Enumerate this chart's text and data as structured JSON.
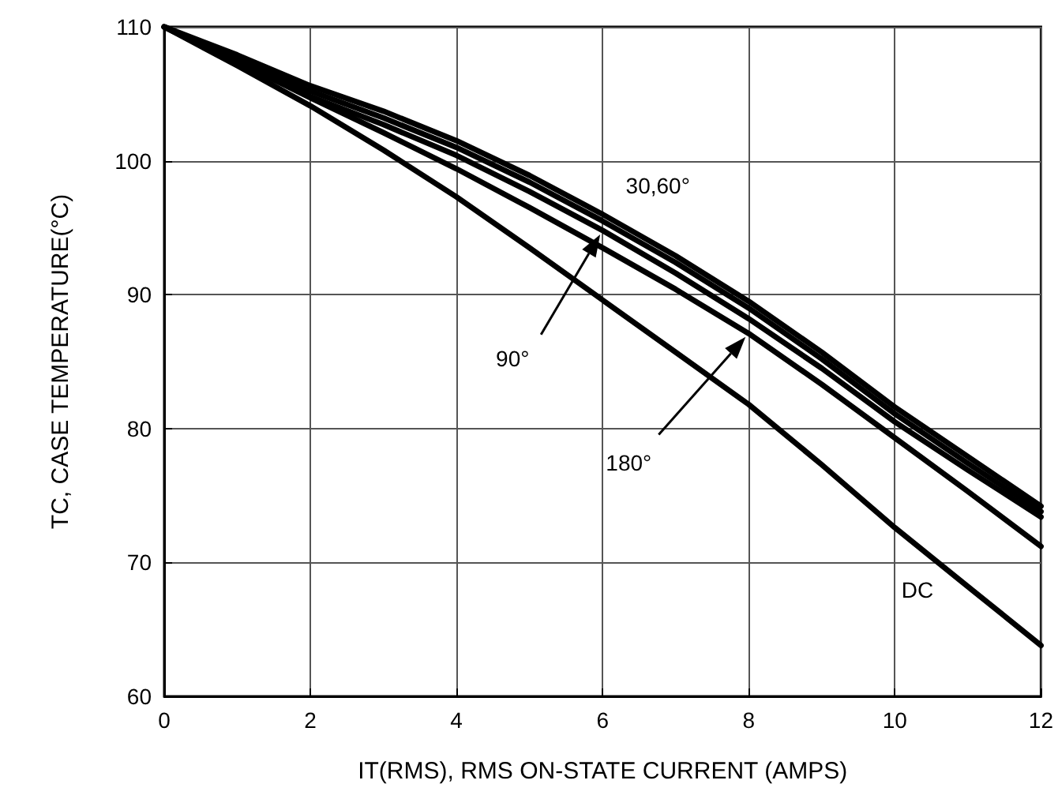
{
  "chart_data": {
    "type": "line",
    "xlabel": "IT(RMS), RMS ON-STATE CURRENT (AMPS)",
    "ylabel": "TC, CASE TEMPERATURE(°C)",
    "x": [
      0,
      1,
      2,
      3,
      4,
      5,
      6,
      7,
      8,
      9,
      10,
      11,
      12
    ],
    "series": [
      {
        "color": "#000000",
        "values": [
          110,
          107.9,
          105.6,
          103.7,
          101.5,
          98.9,
          96.0,
          92.9,
          89.5,
          85.7,
          81.6,
          77.9,
          74.2
        ]
      },
      {
        "color": "#000000",
        "values": [
          110,
          107.6,
          105.2,
          103.2,
          101.0,
          98.4,
          95.5,
          92.4,
          89.0,
          85.2,
          81.1,
          77.4,
          73.8
        ]
      },
      {
        "color": "#000000",
        "values": [
          110,
          107.3,
          104.8,
          102.7,
          100.4,
          97.7,
          94.8,
          91.6,
          88.2,
          84.5,
          80.5,
          76.9,
          73.4
        ]
      },
      {
        "color": "#000000",
        "values": [
          110,
          107.4,
          104.7,
          102.1,
          99.4,
          96.5,
          93.5,
          90.4,
          87.1,
          83.3,
          79.3,
          75.3,
          71.2
        ]
      },
      {
        "name": "DC",
        "color": "#000000",
        "values": [
          110,
          107.1,
          104.1,
          100.8,
          97.3,
          93.5,
          89.6,
          85.7,
          81.8,
          77.3,
          72.6,
          68.2,
          63.8
        ]
      }
    ],
    "annotations": [
      "30,60°",
      "90°",
      "180°"
    ],
    "xlim": [
      0,
      12
    ],
    "xticks": [
      0,
      2,
      4,
      6,
      8,
      10,
      12
    ],
    "ylim": [
      60,
      110
    ],
    "yticks": [
      60,
      70,
      80,
      90,
      100,
      110
    ],
    "grid": true,
    "marker": "none",
    "line_style": "solid"
  }
}
